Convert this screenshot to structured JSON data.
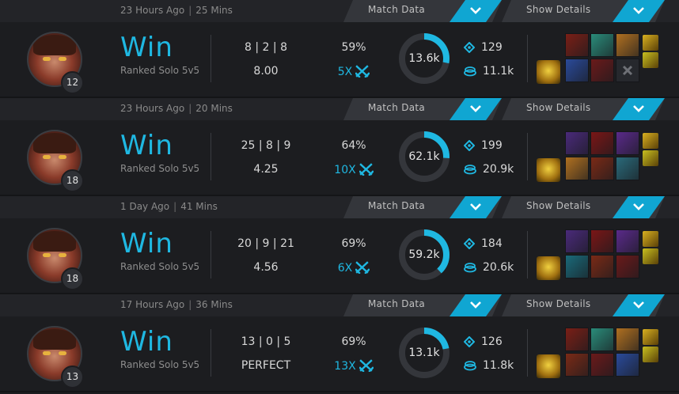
{
  "matches": [
    {
      "time_ago": "23 Hours Ago",
      "duration": "25 Mins",
      "match_data_label": "Match Data",
      "show_details_label": "Show Details",
      "level": "12",
      "result": "Win",
      "queue": "Ranked Solo 5v5",
      "kda": "8 | 2 | 8",
      "kda_ratio": "8.00",
      "kill_participation": "59%",
      "multikill": "5X",
      "damage": "13.6k",
      "damage_fraction": 0.28,
      "wards": "129",
      "gold": "11.1k",
      "items": [
        "#7a1f16",
        "#2a8c7a",
        "#b07020",
        "#2a4a9a",
        "#6a1a1a",
        "#2a2c32"
      ],
      "empty_slot_icon": "x-icon",
      "side_icons": [
        "#d8b020",
        "#c8c020"
      ]
    },
    {
      "time_ago": "23 Hours Ago",
      "duration": "20 Mins",
      "match_data_label": "Match Data",
      "show_details_label": "Show Details",
      "level": "18",
      "result": "Win",
      "queue": "Ranked Solo 5v5",
      "kda": "25 | 8 | 9",
      "kda_ratio": "4.25",
      "kill_participation": "64%",
      "multikill": "10X",
      "damage": "62.1k",
      "damage_fraction": 0.26,
      "wards": "199",
      "gold": "20.9k",
      "items": [
        "#4a2a7a",
        "#7a1616",
        "#5a2a8a",
        "#b07020",
        "#7a2a16",
        "#2a6a7a"
      ],
      "empty_slot_icon": "",
      "side_icons": [
        "#d8b020",
        "#c8c020"
      ]
    },
    {
      "time_ago": "1 Day Ago",
      "duration": "41 Mins",
      "match_data_label": "Match Data",
      "show_details_label": "Show Details",
      "level": "18",
      "result": "Win",
      "queue": "Ranked Solo 5v5",
      "kda": "20 | 9 | 21",
      "kda_ratio": "4.56",
      "kill_participation": "69%",
      "multikill": "6X",
      "damage": "59.2k",
      "damage_fraction": 0.38,
      "wards": "184",
      "gold": "20.6k",
      "items": [
        "#4a2a7a",
        "#7a1616",
        "#5a2a8a",
        "#1a6a7a",
        "#7a2a16",
        "#6a1a1a"
      ],
      "empty_slot_icon": "",
      "side_icons": [
        "#d8b020",
        "#c8c020"
      ]
    },
    {
      "time_ago": "17 Hours Ago",
      "duration": "36 Mins",
      "match_data_label": "Match Data",
      "show_details_label": "Show Details",
      "level": "13",
      "result": "Win",
      "queue": "Ranked Solo 5v5",
      "kda": "13 | 0 | 5",
      "kda_ratio": "PERFECT",
      "kill_participation": "69%",
      "multikill": "13X",
      "damage": "13.1k",
      "damage_fraction": 0.22,
      "wards": "126",
      "gold": "11.8k",
      "items": [
        "#7a1f16",
        "#2a8c7a",
        "#b07020",
        "#7a2a16",
        "#6a1a1a",
        "#2a4a9a"
      ],
      "empty_slot_icon": "",
      "side_icons": [
        "#d8b020",
        "#c8c020"
      ]
    }
  ],
  "colors": {
    "accent": "#1fb8e2",
    "background": "#1c1d20",
    "header": "#232428",
    "tab": "#34363b"
  }
}
